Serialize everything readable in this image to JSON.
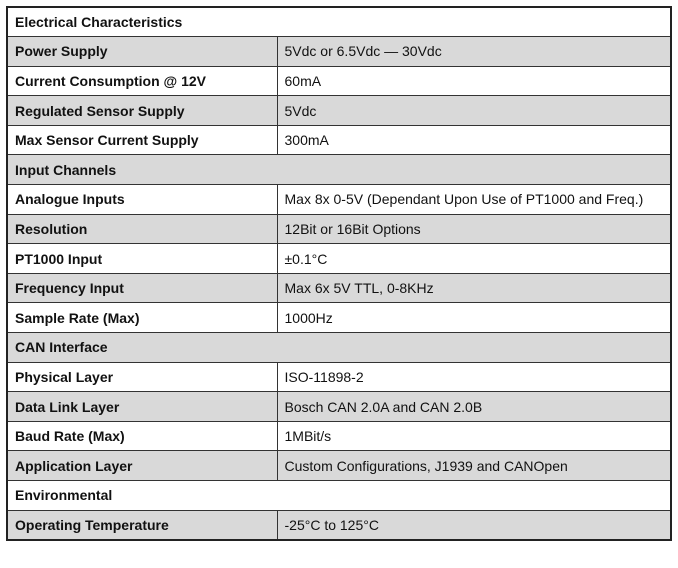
{
  "sections": [
    {
      "title": "Electrical Characteristics",
      "rows": [
        [
          "Power Supply",
          "5Vdc or 6.5Vdc — 30Vdc"
        ],
        [
          "Current Consumption @ 12V",
          "60mA"
        ],
        [
          "Regulated Sensor Supply",
          "5Vdc"
        ],
        [
          "Max Sensor Current Supply",
          "300mA"
        ]
      ]
    },
    {
      "title": "Input Channels",
      "rows": [
        [
          "Analogue Inputs",
          "Max 8x 0-5V (Dependant Upon Use of PT1000 and Freq.)"
        ],
        [
          "Resolution",
          "12Bit or 16Bit Options"
        ],
        [
          "PT1000 Input",
          "±0.1°C"
        ],
        [
          "Frequency Input",
          "Max 6x 5V TTL, 0-8KHz"
        ],
        [
          "Sample Rate (Max)",
          "1000Hz"
        ]
      ]
    },
    {
      "title": "CAN Interface",
      "rows": [
        [
          "Physical Layer",
          "ISO-11898-2"
        ],
        [
          "Data Link Layer",
          "Bosch CAN 2.0A and CAN 2.0B"
        ],
        [
          "Baud Rate (Max)",
          "1MBit/s"
        ],
        [
          "Application Layer",
          "Custom Configurations, J1939 and CANOpen"
        ]
      ]
    },
    {
      "title": "Environmental",
      "rows": [
        [
          "Operating Temperature",
          "-25°C to 125°C"
        ]
      ]
    }
  ]
}
